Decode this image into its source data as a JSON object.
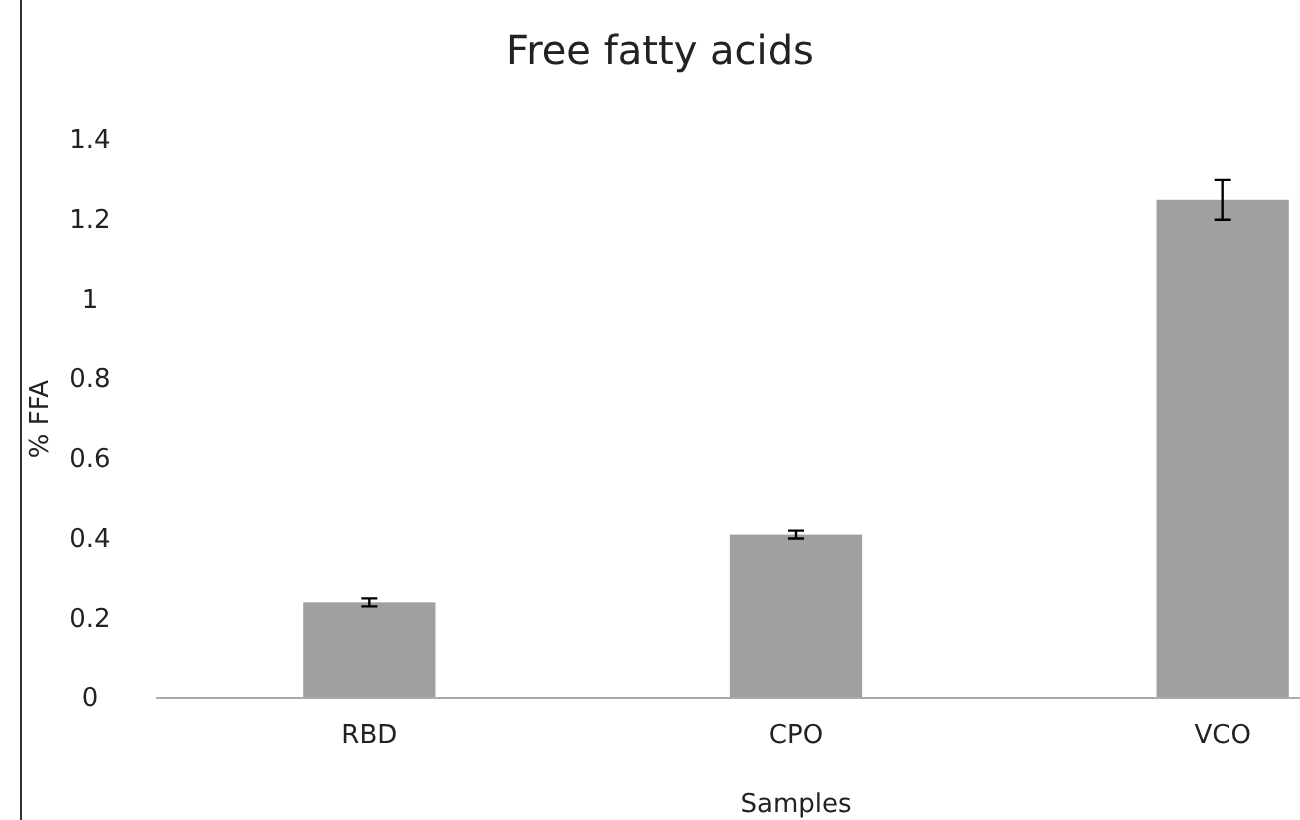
{
  "chart_data": {
    "type": "bar",
    "title": "Free fatty acids",
    "xlabel": "Samples",
    "ylabel": "% FFA",
    "categories": [
      "RBD",
      "CPO",
      "VCO"
    ],
    "values": [
      0.24,
      0.41,
      1.25
    ],
    "errors": [
      0.01,
      0.01,
      0.05
    ],
    "color": "#a0a0a0",
    "ylim": [
      0,
      1.4
    ],
    "yticks": [
      0,
      0.2,
      0.4,
      0.6,
      0.8,
      1,
      1.2,
      1.4
    ],
    "grid": false
  }
}
